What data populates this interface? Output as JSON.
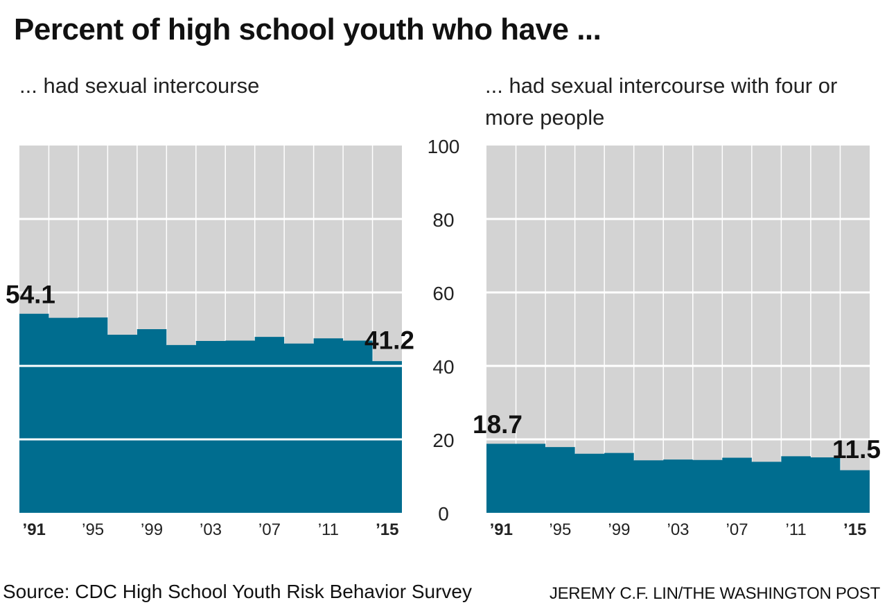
{
  "title": "Percent of high school youth who have ...",
  "footer": {
    "source": "Source: CDC High School Youth Risk Behavior Survey",
    "credit": "JEREMY C.F. LIN/THE WASHINGTON POST"
  },
  "colors": {
    "fill": "#006d8f",
    "background": "#d3d3d3",
    "grid": "#ffffff"
  },
  "chart_data": [
    {
      "type": "area",
      "title": "... had sexual intercourse",
      "x": [
        1991,
        1993,
        1995,
        1997,
        1999,
        2001,
        2003,
        2005,
        2007,
        2009,
        2011,
        2013,
        2015
      ],
      "values": [
        54.1,
        53.0,
        53.1,
        48.4,
        49.9,
        45.6,
        46.7,
        46.8,
        47.8,
        46.0,
        47.4,
        46.8,
        41.2
      ],
      "ylim": [
        0,
        100
      ],
      "yticks": [
        0,
        20,
        40,
        60,
        80,
        100
      ],
      "xtick_labels": [
        "’91",
        "’95",
        "’99",
        "’03",
        "’07",
        "’11",
        "’15"
      ],
      "annotations": [
        {
          "text": "54.1",
          "year": 1991,
          "value": 54.1
        },
        {
          "text": "41.2",
          "year": 2015,
          "value": 41.2
        }
      ]
    },
    {
      "type": "area",
      "title": "... had sexual intercourse with four or more people",
      "x": [
        1991,
        1993,
        1995,
        1997,
        1999,
        2001,
        2003,
        2005,
        2007,
        2009,
        2011,
        2013,
        2015
      ],
      "values": [
        18.7,
        18.7,
        17.8,
        16.0,
        16.2,
        14.2,
        14.4,
        14.3,
        14.9,
        13.8,
        15.3,
        15.0,
        11.5
      ],
      "ylim": [
        0,
        100
      ],
      "yticks": [
        0,
        20,
        40,
        60,
        80,
        100
      ],
      "xtick_labels": [
        "’91",
        "’95",
        "’99",
        "’03",
        "’07",
        "’11",
        "’15"
      ],
      "annotations": [
        {
          "text": "18.7",
          "year": 1991,
          "value": 18.7
        },
        {
          "text": "11.5",
          "year": 2015,
          "value": 11.5
        }
      ]
    }
  ]
}
